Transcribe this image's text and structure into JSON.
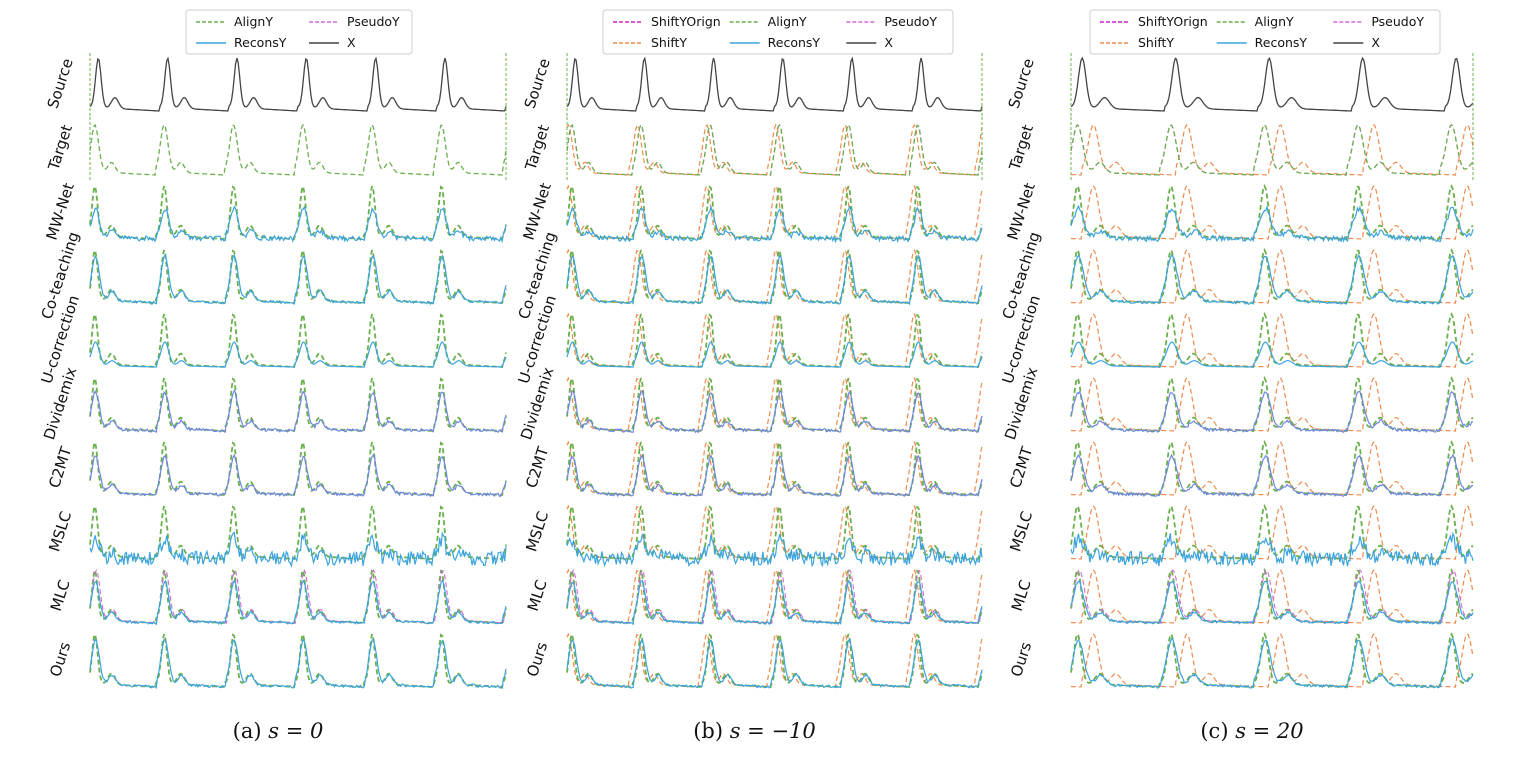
{
  "figure": {
    "row_labels": [
      "Source",
      "Target",
      "MW-Net",
      "Co-teaching",
      "U-correction",
      "Dividemix",
      "C2MT",
      "MSLC",
      "MLC",
      "Ours"
    ],
    "colors": {
      "AlignY": "#6ab04c",
      "ReconsY": "#3ba3de",
      "PseudoY": "#d36ad8",
      "X": "#444444",
      "ShiftY": "#f08a4b",
      "ShiftYOrign": "#d020c8",
      "Dividemix": "#6e86e0"
    }
  },
  "chart_data": [
    {
      "type": "line",
      "panel_id": "a",
      "caption_prefix": "(a)",
      "caption_math": "s = 0",
      "shift": 0,
      "legend": [
        "AlignY",
        "ReconsY",
        "PseudoY",
        "X"
      ],
      "x": [
        0,
        500
      ],
      "series_description": "Source: PPG-like signal X; Target: AlignY; methods show AlignY vs ReconsY (MLC also PseudoY)"
    },
    {
      "type": "line",
      "panel_id": "b",
      "caption_prefix": "(b)",
      "caption_math": "s = −10",
      "shift": -10,
      "legend": [
        "ShiftYOrign",
        "ShiftY",
        "AlignY",
        "ReconsY",
        "PseudoY",
        "X"
      ],
      "x": [
        0,
        500
      ],
      "series_description": "Target shows ShiftYOrign, ShiftY and AlignY; methods show ShiftY, AlignY, ReconsY"
    },
    {
      "type": "line",
      "panel_id": "c",
      "caption_prefix": "(c)",
      "caption_math": "s = 20",
      "shift": 20,
      "legend": [
        "ShiftYOrign",
        "ShiftY",
        "AlignY",
        "ReconsY",
        "PseudoY",
        "X"
      ],
      "x": [
        0,
        500
      ],
      "series_description": "Target shows ShiftYOrign, ShiftY and AlignY; methods show ShiftY, AlignY, ReconsY"
    }
  ]
}
